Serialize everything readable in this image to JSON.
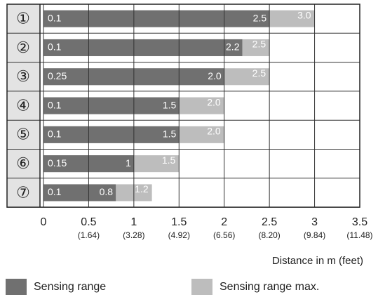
{
  "chart_data": {
    "type": "range-bar",
    "categories": [
      "①",
      "②",
      "③",
      "④",
      "⑤",
      "⑥",
      "⑦"
    ],
    "start": [
      0.1,
      0.1,
      0.25,
      0.1,
      0.1,
      0.15,
      0.1
    ],
    "series": [
      {
        "name": "Sensing range",
        "color": "#707070",
        "values": [
          2.5,
          2.2,
          2.0,
          1.5,
          1.5,
          1,
          0.8
        ],
        "value_labels": [
          "2.5",
          "2.2",
          "2.0",
          "1.5",
          "1.5",
          "1",
          "0.8"
        ]
      },
      {
        "name": "Sensing range max.",
        "color": "#bdbdbd",
        "values": [
          3.0,
          2.5,
          2.5,
          2.0,
          2.0,
          1.5,
          1.2
        ],
        "value_labels": [
          "3.0",
          "2.5",
          "2.5",
          "2.0",
          "2.0",
          "1.5",
          "1.2"
        ]
      }
    ],
    "xlim": [
      0,
      3.5
    ],
    "xticks": [
      0,
      0.5,
      1,
      1.5,
      2,
      2.5,
      3,
      3.5
    ],
    "xtick_sublabels": [
      null,
      "(1.64)",
      "(3.28)",
      "(4.92)",
      "(6.56)",
      "(8.20)",
      "(9.84)",
      "(11.48)"
    ],
    "xlabel": "Distance in m (feet)",
    "grid": true
  }
}
